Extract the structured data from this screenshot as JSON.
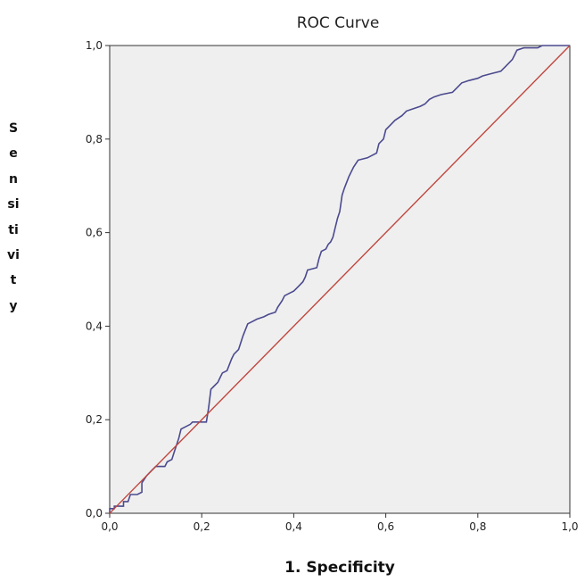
{
  "chart_data": {
    "type": "line",
    "title": "ROC Curve",
    "xlabel": "1. Specificity",
    "ylabel": "Sensitivity",
    "xlim": [
      0,
      1
    ],
    "ylim": [
      0,
      1
    ],
    "x_ticks": [
      "0,0",
      "0,2",
      "0,4",
      "0,6",
      "0,8",
      "1,0"
    ],
    "y_ticks": [
      "0,0",
      "0,2",
      "0,4",
      "0,6",
      "0,8",
      "1,0"
    ],
    "grid": false,
    "series": [
      {
        "role": "roc",
        "color": "#4b4a8f",
        "points": [
          [
            0.0,
            0.0
          ],
          [
            0.0,
            0.01
          ],
          [
            0.01,
            0.01
          ],
          [
            0.01,
            0.015
          ],
          [
            0.03,
            0.015
          ],
          [
            0.03,
            0.025
          ],
          [
            0.04,
            0.025
          ],
          [
            0.045,
            0.04
          ],
          [
            0.06,
            0.04
          ],
          [
            0.07,
            0.045
          ],
          [
            0.07,
            0.065
          ],
          [
            0.08,
            0.08
          ],
          [
            0.09,
            0.09
          ],
          [
            0.1,
            0.1
          ],
          [
            0.12,
            0.1
          ],
          [
            0.125,
            0.11
          ],
          [
            0.135,
            0.115
          ],
          [
            0.14,
            0.13
          ],
          [
            0.15,
            0.16
          ],
          [
            0.155,
            0.18
          ],
          [
            0.175,
            0.19
          ],
          [
            0.18,
            0.195
          ],
          [
            0.21,
            0.195
          ],
          [
            0.215,
            0.225
          ],
          [
            0.22,
            0.265
          ],
          [
            0.225,
            0.27
          ],
          [
            0.235,
            0.28
          ],
          [
            0.24,
            0.29
          ],
          [
            0.245,
            0.3
          ],
          [
            0.255,
            0.305
          ],
          [
            0.265,
            0.33
          ],
          [
            0.27,
            0.34
          ],
          [
            0.28,
            0.35
          ],
          [
            0.29,
            0.38
          ],
          [
            0.3,
            0.405
          ],
          [
            0.31,
            0.41
          ],
          [
            0.32,
            0.415
          ],
          [
            0.335,
            0.42
          ],
          [
            0.345,
            0.425
          ],
          [
            0.36,
            0.43
          ],
          [
            0.365,
            0.44
          ],
          [
            0.375,
            0.455
          ],
          [
            0.38,
            0.465
          ],
          [
            0.39,
            0.47
          ],
          [
            0.4,
            0.475
          ],
          [
            0.41,
            0.485
          ],
          [
            0.42,
            0.495
          ],
          [
            0.425,
            0.505
          ],
          [
            0.43,
            0.52
          ],
          [
            0.45,
            0.525
          ],
          [
            0.455,
            0.545
          ],
          [
            0.46,
            0.56
          ],
          [
            0.47,
            0.565
          ],
          [
            0.475,
            0.575
          ],
          [
            0.48,
            0.58
          ],
          [
            0.485,
            0.59
          ],
          [
            0.49,
            0.61
          ],
          [
            0.495,
            0.63
          ],
          [
            0.5,
            0.645
          ],
          [
            0.505,
            0.68
          ],
          [
            0.51,
            0.695
          ],
          [
            0.52,
            0.72
          ],
          [
            0.53,
            0.74
          ],
          [
            0.54,
            0.755
          ],
          [
            0.56,
            0.76
          ],
          [
            0.58,
            0.77
          ],
          [
            0.585,
            0.79
          ],
          [
            0.595,
            0.8
          ],
          [
            0.6,
            0.82
          ],
          [
            0.61,
            0.83
          ],
          [
            0.62,
            0.84
          ],
          [
            0.635,
            0.85
          ],
          [
            0.645,
            0.86
          ],
          [
            0.66,
            0.865
          ],
          [
            0.675,
            0.87
          ],
          [
            0.685,
            0.875
          ],
          [
            0.695,
            0.885
          ],
          [
            0.705,
            0.89
          ],
          [
            0.72,
            0.895
          ],
          [
            0.745,
            0.9
          ],
          [
            0.755,
            0.91
          ],
          [
            0.765,
            0.92
          ],
          [
            0.78,
            0.925
          ],
          [
            0.8,
            0.93
          ],
          [
            0.81,
            0.935
          ],
          [
            0.83,
            0.94
          ],
          [
            0.85,
            0.945
          ],
          [
            0.86,
            0.955
          ],
          [
            0.875,
            0.97
          ],
          [
            0.88,
            0.98
          ],
          [
            0.885,
            0.99
          ],
          [
            0.9,
            0.995
          ],
          [
            0.93,
            0.995
          ],
          [
            0.94,
            1.0
          ],
          [
            1.0,
            1.0
          ]
        ]
      },
      {
        "role": "reference",
        "color": "#c0463e",
        "points": [
          [
            0,
            0
          ],
          [
            1,
            1
          ]
        ]
      }
    ]
  }
}
